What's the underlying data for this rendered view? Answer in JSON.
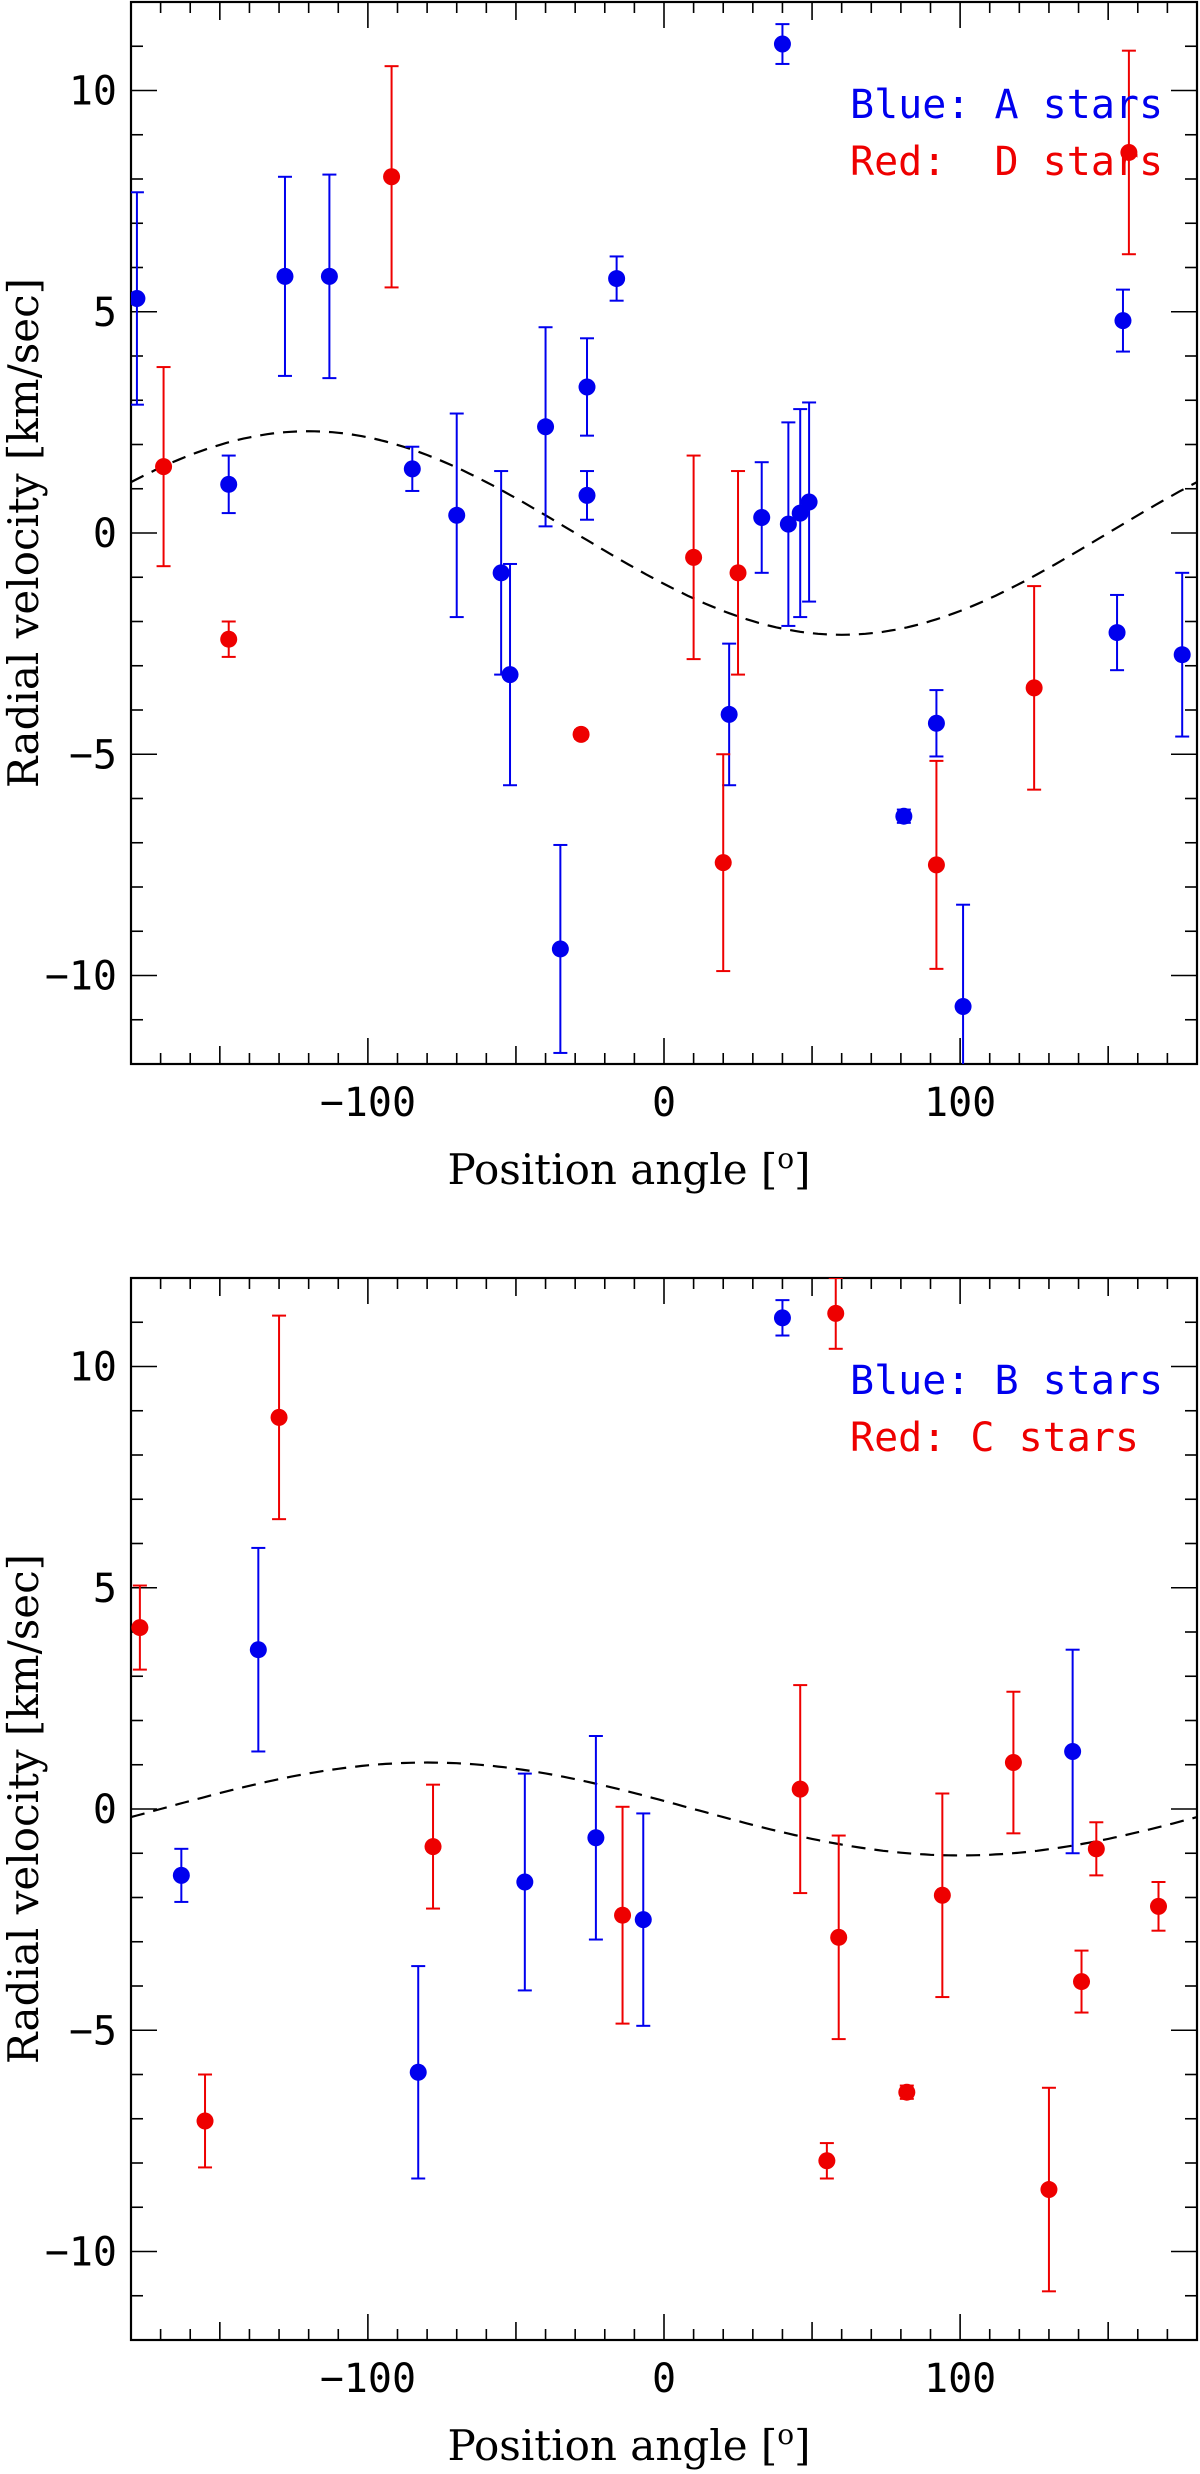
{
  "chart_data": [
    {
      "type": "scatter",
      "title": "",
      "xlabel": "Position angle [",
      "xlabel_sup": "o",
      "xlabel_end": "]",
      "ylabel": "Radial velocity [km/sec]",
      "xlim": [
        -180,
        180
      ],
      "ylim": [
        -12,
        12
      ],
      "xticks": [
        -100,
        0,
        100
      ],
      "yticks": [
        10,
        5,
        0,
        -5,
        -10
      ],
      "xtick_labels": [
        "−100",
        "0",
        "100"
      ],
      "ytick_labels": [
        "10",
        "5",
        "0",
        "−5",
        "−10"
      ],
      "legend_position": "top-right",
      "model_curve": {
        "amplitude": 2.3,
        "peak_angle": -120,
        "style": "dashed"
      },
      "series": [
        {
          "name": "Blue: A stars",
          "color": "#0000ee",
          "points": [
            {
              "x": -178,
              "y": 5.3,
              "err": 2.4
            },
            {
              "x": -147,
              "y": 1.1,
              "err": 0.65
            },
            {
              "x": -128,
              "y": 5.8,
              "err": 2.25
            },
            {
              "x": -113,
              "y": 5.8,
              "err": 2.3
            },
            {
              "x": -85,
              "y": 1.45,
              "err": 0.5
            },
            {
              "x": -70,
              "y": 0.4,
              "err": 2.3
            },
            {
              "x": -55,
              "y": -0.9,
              "err": 2.3
            },
            {
              "x": -52,
              "y": -3.2,
              "err": 2.5
            },
            {
              "x": -35,
              "y": -9.4,
              "err": 2.35
            },
            {
              "x": -40,
              "y": 2.4,
              "err": 2.25
            },
            {
              "x": -26,
              "y": 3.3,
              "err": 1.1
            },
            {
              "x": -26,
              "y": 0.85,
              "err": 0.55
            },
            {
              "x": -16,
              "y": 5.75,
              "err": 0.5
            },
            {
              "x": 22,
              "y": -4.1,
              "err": 1.6
            },
            {
              "x": 33,
              "y": 0.35,
              "err": 1.25
            },
            {
              "x": 40,
              "y": 11.05,
              "err": 0.45
            },
            {
              "x": 42,
              "y": 0.2,
              "err": 2.3
            },
            {
              "x": 46,
              "y": 0.45,
              "err": 2.35
            },
            {
              "x": 49,
              "y": 0.7,
              "err": 2.25
            },
            {
              "x": 81,
              "y": -6.4,
              "err": 0.15
            },
            {
              "x": 92,
              "y": -4.3,
              "err": 0.75
            },
            {
              "x": 101,
              "y": -10.7,
              "err": 2.3
            },
            {
              "x": 153,
              "y": -2.25,
              "err": 0.85
            },
            {
              "x": 155,
              "y": 4.8,
              "err": 0.7
            },
            {
              "x": 175,
              "y": -2.75,
              "err": 1.85
            }
          ]
        },
        {
          "name": "Red:  D stars",
          "color": "#ee0000",
          "points": [
            {
              "x": -169,
              "y": 1.5,
              "err": 2.25
            },
            {
              "x": -147,
              "y": -2.4,
              "err": 0.4
            },
            {
              "x": -92,
              "y": 8.05,
              "err": 2.5
            },
            {
              "x": -28,
              "y": -4.55,
              "err": 0.1
            },
            {
              "x": 10,
              "y": -0.55,
              "err": 2.3
            },
            {
              "x": 20,
              "y": -7.45,
              "err": 2.45
            },
            {
              "x": 25,
              "y": -0.9,
              "err": 2.3
            },
            {
              "x": 92,
              "y": -7.5,
              "err": 2.35
            },
            {
              "x": 125,
              "y": -3.5,
              "err": 2.3
            },
            {
              "x": 157,
              "y": 8.6,
              "err": 2.3
            }
          ]
        }
      ]
    },
    {
      "type": "scatter",
      "title": "",
      "xlabel": "Position angle [",
      "xlabel_sup": "o",
      "xlabel_end": "]",
      "ylabel": "Radial velocity [km/sec]",
      "xlim": [
        -180,
        180
      ],
      "ylim": [
        -12,
        12
      ],
      "xticks": [
        -100,
        0,
        100
      ],
      "yticks": [
        10,
        5,
        0,
        -5,
        -10
      ],
      "xtick_labels": [
        "−100",
        "0",
        "100"
      ],
      "ytick_labels": [
        "10",
        "5",
        "0",
        "−5",
        "−10"
      ],
      "legend_position": "top-right",
      "model_curve": {
        "amplitude": 1.05,
        "peak_angle": -80,
        "style": "dashed"
      },
      "series": [
        {
          "name": "Blue: B stars",
          "color": "#0000ee",
          "points": [
            {
              "x": -163,
              "y": -1.5,
              "err": 0.6
            },
            {
              "x": -137,
              "y": 3.6,
              "err": 2.3
            },
            {
              "x": -83,
              "y": -5.95,
              "err": 2.4
            },
            {
              "x": -47,
              "y": -1.65,
              "err": 2.45
            },
            {
              "x": -23,
              "y": -0.65,
              "err": 2.3
            },
            {
              "x": -7,
              "y": -2.5,
              "err": 2.4
            },
            {
              "x": 40,
              "y": 11.1,
              "err": 0.4
            },
            {
              "x": 138,
              "y": 1.3,
              "err": 2.3
            }
          ]
        },
        {
          "name": "Red: C stars",
          "color": "#ee0000",
          "points": [
            {
              "x": -177,
              "y": 4.1,
              "err": 0.95
            },
            {
              "x": -155,
              "y": -7.05,
              "err": 1.05
            },
            {
              "x": -130,
              "y": 8.85,
              "err": 2.3
            },
            {
              "x": -78,
              "y": -0.85,
              "err": 1.4
            },
            {
              "x": -14,
              "y": -2.4,
              "err": 2.45
            },
            {
              "x": 46,
              "y": 0.45,
              "err": 2.35
            },
            {
              "x": 55,
              "y": -7.95,
              "err": 0.4
            },
            {
              "x": 58,
              "y": 11.2,
              "err": 0.8
            },
            {
              "x": 59,
              "y": -2.9,
              "err": 2.3
            },
            {
              "x": 82,
              "y": -6.4,
              "err": 0.15
            },
            {
              "x": 94,
              "y": -1.95,
              "err": 2.3
            },
            {
              "x": 118,
              "y": 1.05,
              "err": 1.6
            },
            {
              "x": 130,
              "y": -8.6,
              "err": 2.3
            },
            {
              "x": 141,
              "y": -3.9,
              "err": 0.7
            },
            {
              "x": 146,
              "y": -0.9,
              "err": 0.6
            },
            {
              "x": 167,
              "y": -2.2,
              "err": 0.55
            }
          ]
        }
      ]
    }
  ]
}
